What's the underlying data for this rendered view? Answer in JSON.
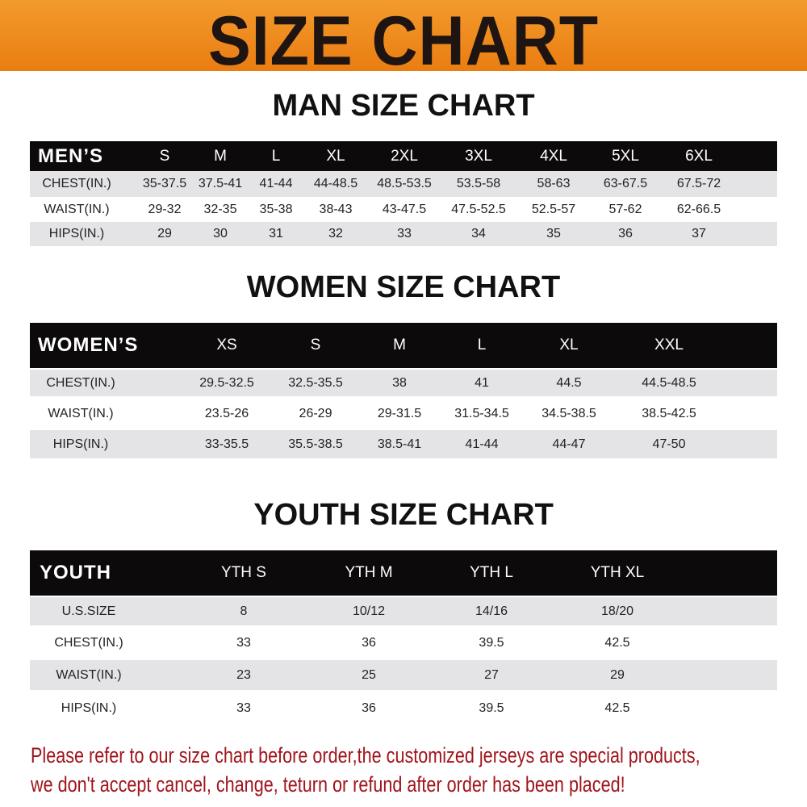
{
  "title": "SIZE CHART",
  "colors": {
    "banner": "#ee8a1e",
    "header_row": "#0c0a0a",
    "stripe": "#e4e4e6",
    "notice": "#a0141c"
  },
  "men": {
    "title": "MAN SIZE CHART",
    "header": [
      "MEN’S",
      "S",
      "M",
      "L",
      "XL",
      "2XL",
      "3XL",
      "4XL",
      "5XL",
      "6XL"
    ],
    "rows": [
      [
        "CHEST(IN.)",
        "35-37.5",
        "37.5-41",
        "41-44",
        "44-48.5",
        "48.5-53.5",
        "53.5-58",
        "58-63",
        "63-67.5",
        "67.5-72"
      ],
      [
        "WAIST(IN.)",
        "29-32",
        "32-35",
        "35-38",
        "38-43",
        "43-47.5",
        "47.5-52.5",
        "52.5-57",
        "57-62",
        "62-66.5"
      ],
      [
        "HIPS(IN.)",
        "29",
        "30",
        "31",
        "32",
        "33",
        "34",
        "35",
        "36",
        "37"
      ]
    ]
  },
  "women": {
    "title": "WOMEN SIZE CHART",
    "header": [
      "WOMEN’S",
      "XS",
      "S",
      "M",
      "L",
      "XL",
      "XXL"
    ],
    "rows": [
      [
        "CHEST(IN.)",
        "29.5-32.5",
        "32.5-35.5",
        "38",
        "41",
        "44.5",
        "44.5-48.5"
      ],
      [
        "WAIST(IN.)",
        "23.5-26",
        "26-29",
        "29-31.5",
        "31.5-34.5",
        "34.5-38.5",
        "38.5-42.5"
      ],
      [
        "HIPS(IN.)",
        "33-35.5",
        "35.5-38.5",
        "38.5-41",
        "41-44",
        "44-47",
        "47-50"
      ]
    ]
  },
  "youth": {
    "title": "YOUTH SIZE CHART",
    "header": [
      "YOUTH",
      "YTH S",
      "YTH M",
      "YTH L",
      "YTH XL"
    ],
    "rows": [
      [
        "U.S.SIZE",
        "8",
        "10/12",
        "14/16",
        "18/20"
      ],
      [
        "CHEST(IN.)",
        "33",
        "36",
        "39.5",
        "42.5"
      ],
      [
        "WAIST(IN.)",
        "23",
        "25",
        "27",
        "29"
      ],
      [
        "HIPS(IN.)",
        "33",
        "36",
        "39.5",
        "42.5"
      ]
    ]
  },
  "notice": [
    "Please refer to our size chart before order,the customized jerseys are special products,",
    "we don't accept cancel, change, teturn or refund after order has been placed!"
  ]
}
